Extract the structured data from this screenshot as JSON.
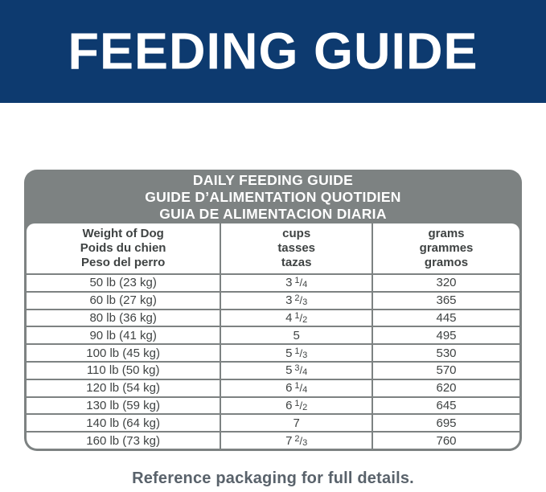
{
  "banner": {
    "title": "FEEDING GUIDE",
    "bg_color": "#0d3a6f",
    "text_color": "#ffffff"
  },
  "table": {
    "title_lines": [
      "DAILY FEEDING GUIDE",
      "GUIDE D’ALIMENTATION QUOTIDIEN",
      "GUIA DE ALIMENTACION DIARIA"
    ],
    "header_bg_color": "#7d8282",
    "border_color": "#7d8282",
    "text_color": "#3f4343",
    "columns": [
      {
        "id": "weight",
        "lines": [
          "Weight of Dog",
          "Poids du chien",
          "Peso del perro"
        ]
      },
      {
        "id": "cups",
        "lines": [
          "cups",
          "tasses",
          "tazas"
        ]
      },
      {
        "id": "grams",
        "lines": [
          "grams",
          "grammes",
          "gramos"
        ]
      }
    ],
    "rows": [
      {
        "weight": "50 lb (23 kg)",
        "cups": "3 1/4",
        "grams": "320"
      },
      {
        "weight": "60 lb (27 kg)",
        "cups": "3 2/3",
        "grams": "365"
      },
      {
        "weight": "80 lb (36 kg)",
        "cups": "4 1/2",
        "grams": "445"
      },
      {
        "weight": "90 lb (41 kg)",
        "cups": "5",
        "grams": "495"
      },
      {
        "weight": "100 lb (45 kg)",
        "cups": "5 1/3",
        "grams": "530"
      },
      {
        "weight": "110 lb (50 kg)",
        "cups": "5 3/4",
        "grams": "570"
      },
      {
        "weight": "120 lb (54 kg)",
        "cups": "6 1/4",
        "grams": "620"
      },
      {
        "weight": "130 lb (59 kg)",
        "cups": "6 1/2",
        "grams": "645"
      },
      {
        "weight": "140 lb (64 kg)",
        "cups": "7",
        "grams": "695"
      },
      {
        "weight": "160 lb (73 kg)",
        "cups": "7 2/3",
        "grams": "760"
      }
    ]
  },
  "footer": {
    "note": "Reference packaging for full details."
  }
}
